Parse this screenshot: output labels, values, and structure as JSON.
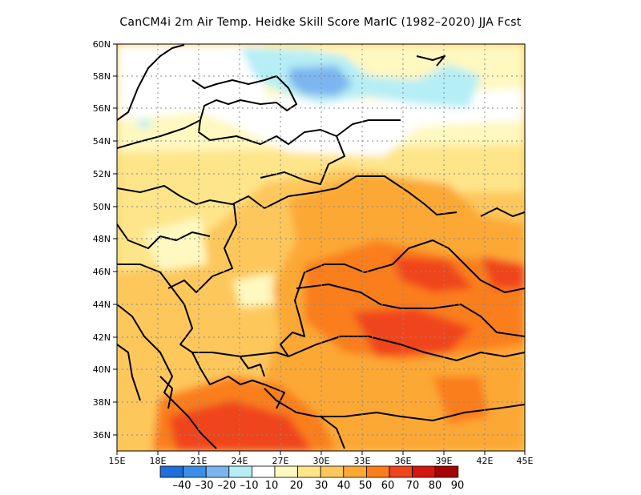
{
  "title": "CanCM4i  2m Air Temp. Heidke Skill Score MarIC (1982–2020) JJA Fcst",
  "map": {
    "lon_range": [
      15,
      45
    ],
    "lat_range": [
      35,
      60
    ],
    "lon_ticks": [
      "15E",
      "18E",
      "21E",
      "24E",
      "27E",
      "30E",
      "33E",
      "36E",
      "39E",
      "42E",
      "45E"
    ],
    "lat_ticks": [
      "36N",
      "38N",
      "40N",
      "42N",
      "44N",
      "46N",
      "48N",
      "50N",
      "52N",
      "54N",
      "56N",
      "58N",
      "60N"
    ],
    "grid": "dotted"
  },
  "colorbar": {
    "labels": [
      "–40",
      "–30",
      "–20",
      "–10",
      "10",
      "20",
      "30",
      "40",
      "50",
      "60",
      "70",
      "80",
      "90"
    ],
    "colors": [
      "#1e6fd9",
      "#3d8ee6",
      "#7bb5ef",
      "#b6eef5",
      "#ffffff",
      "#fff8c0",
      "#fee58a",
      "#fdc75c",
      "#fca835",
      "#fb7e1c",
      "#f0441a",
      "#d4170e",
      "#a30505"
    ]
  }
}
